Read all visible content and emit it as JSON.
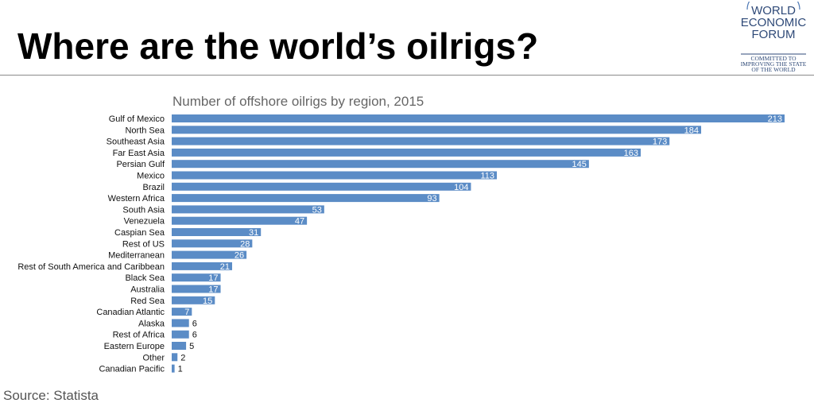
{
  "headline": "Where are the world’s oilrigs?",
  "logo": {
    "line1": "WORLD",
    "line2": "ECONOMIC",
    "line3": "FORUM",
    "motto1": "COMMITTED TO",
    "motto2": "IMPROVING THE STATE",
    "motto3": "OF THE WORLD"
  },
  "source": "Source: Statista",
  "colors": {
    "bar": "#5b8cc6",
    "value_label_inside": "#ffffff",
    "value_label_outside": "#111111",
    "rule": "#8a8a8a"
  },
  "chart_data": {
    "type": "bar",
    "orientation": "horizontal",
    "title": "Number of offshore oilrigs by region, 2015",
    "xlabel": "",
    "ylabel": "",
    "xlim": [
      0,
      213
    ],
    "grid": false,
    "legend": "none",
    "categories": [
      "Gulf of Mexico",
      "North Sea",
      "Southeast Asia",
      "Far East Asia",
      "Persian Gulf",
      "Mexico",
      "Brazil",
      "Western Africa",
      "South Asia",
      "Venezuela",
      "Caspian Sea",
      "Rest of US",
      "Mediterranean",
      "Rest of South America and Caribbean",
      "Black Sea",
      "Australia",
      "Red Sea",
      "Canadian Atlantic",
      "Alaska",
      "Rest of Africa",
      "Eastern Europe",
      "Other",
      "Canadian Pacific"
    ],
    "values": [
      213,
      184,
      173,
      163,
      145,
      113,
      104,
      93,
      53,
      47,
      31,
      28,
      26,
      21,
      17,
      17,
      15,
      7,
      6,
      6,
      5,
      2,
      1
    ]
  }
}
